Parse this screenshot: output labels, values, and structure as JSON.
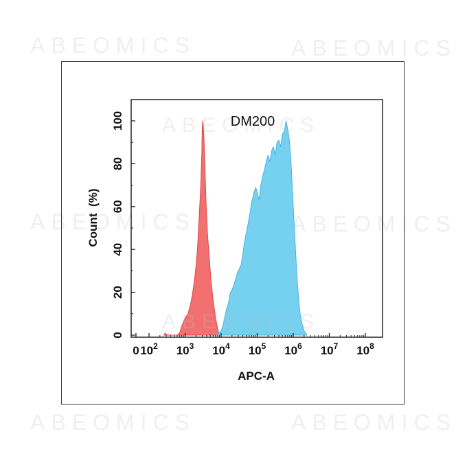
{
  "watermark": {
    "text": "ABEOMICS"
  },
  "chart_data": {
    "type": "area",
    "title": "DM200",
    "xlabel": "APC-A",
    "ylabel": "Count  (%)",
    "x_scale": "log",
    "xlim": [
      0,
      100000000
    ],
    "ylim": [
      0,
      100
    ],
    "x_tick_labels": [
      {
        "value": 0,
        "label": "0"
      },
      {
        "value": 100,
        "base": "10",
        "exp": "2"
      },
      {
        "value": 1000,
        "base": "10",
        "exp": "3"
      },
      {
        "value": 10000,
        "base": "10",
        "exp": "4"
      },
      {
        "value": 100000,
        "base": "10",
        "exp": "5"
      },
      {
        "value": 1000000,
        "base": "10",
        "exp": "6"
      },
      {
        "value": 10000000,
        "base": "10",
        "exp": "7"
      },
      {
        "value": 100000000,
        "base": "10",
        "exp": "8"
      }
    ],
    "y_ticks": [
      0,
      20,
      40,
      60,
      80,
      100
    ],
    "grid": false,
    "legend": "none",
    "series": [
      {
        "color": "#f26868",
        "stroke": "#e14646",
        "points": [
          [
            260,
            0
          ],
          [
            280,
            1
          ],
          [
            300,
            0.3
          ],
          [
            400,
            0
          ],
          [
            600,
            0
          ],
          [
            700,
            1
          ],
          [
            800,
            4
          ],
          [
            1000,
            8
          ],
          [
            1200,
            10
          ],
          [
            1400,
            14
          ],
          [
            1600,
            19
          ],
          [
            1800,
            25
          ],
          [
            2000,
            32
          ],
          [
            2200,
            40
          ],
          [
            2400,
            52
          ],
          [
            2700,
            68
          ],
          [
            2900,
            84
          ],
          [
            3000,
            97
          ],
          [
            3100,
            100
          ],
          [
            3300,
            94
          ],
          [
            3500,
            82
          ],
          [
            3800,
            63
          ],
          [
            4200,
            47
          ],
          [
            4600,
            38
          ],
          [
            5200,
            26
          ],
          [
            6000,
            16
          ],
          [
            7000,
            8
          ],
          [
            8000,
            3
          ],
          [
            9000,
            0
          ]
        ]
      },
      {
        "color": "#6fcdee",
        "stroke": "#47b5e0",
        "points": [
          [
            7500,
            0
          ],
          [
            8500,
            1
          ],
          [
            10000,
            2
          ],
          [
            11000,
            4
          ],
          [
            12500,
            8
          ],
          [
            14000,
            12
          ],
          [
            16000,
            15
          ],
          [
            18000,
            20
          ],
          [
            20000,
            21
          ],
          [
            22000,
            23
          ],
          [
            25000,
            26
          ],
          [
            28000,
            29
          ],
          [
            32000,
            31
          ],
          [
            36000,
            33
          ],
          [
            40000,
            38
          ],
          [
            45000,
            44
          ],
          [
            50000,
            48
          ],
          [
            56000,
            52
          ],
          [
            63000,
            57
          ],
          [
            70000,
            62
          ],
          [
            80000,
            66
          ],
          [
            90000,
            69
          ],
          [
            100000,
            67
          ],
          [
            112000,
            63
          ],
          [
            126000,
            70
          ],
          [
            141000,
            74
          ],
          [
            158000,
            77
          ],
          [
            178000,
            81
          ],
          [
            200000,
            84
          ],
          [
            224000,
            81
          ],
          [
            251000,
            86
          ],
          [
            282000,
            88
          ],
          [
            316000,
            84
          ],
          [
            355000,
            90
          ],
          [
            398000,
            91
          ],
          [
            447000,
            88
          ],
          [
            501000,
            94
          ],
          [
            562000,
            95
          ],
          [
            631000,
            100
          ],
          [
            708000,
            96
          ],
          [
            794000,
            90
          ],
          [
            891000,
            77
          ],
          [
            1000000,
            60
          ],
          [
            1120000,
            44
          ],
          [
            1260000,
            28
          ],
          [
            1410000,
            17
          ],
          [
            1580000,
            9
          ],
          [
            1780000,
            5
          ],
          [
            2000000,
            2
          ],
          [
            2400000,
            0
          ]
        ]
      }
    ]
  }
}
